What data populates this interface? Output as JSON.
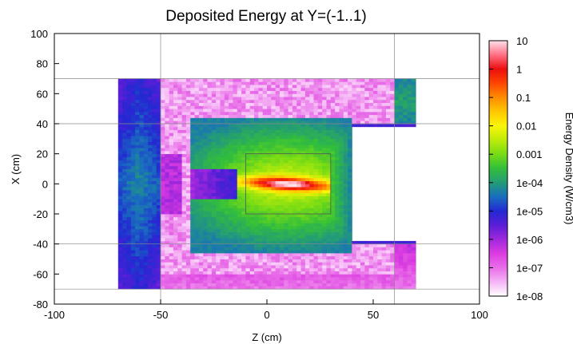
{
  "chart_data": {
    "type": "heatmap",
    "title": "Deposited Energy at Y=(-1..1)",
    "xlabel": "Z (cm)",
    "ylabel": "X (cm)",
    "xlim": [
      -100,
      100
    ],
    "ylim": [
      -80,
      100
    ],
    "x_ticks": [
      "-100",
      "-50",
      "0",
      "50",
      "100"
    ],
    "y_ticks": [
      "-80",
      "-60",
      "-40",
      "-20",
      "0",
      "20",
      "40",
      "60",
      "80",
      "100"
    ],
    "colorbar": {
      "label": "Energy Density (W/cm3)",
      "scale": "log",
      "range": [
        1e-08,
        10
      ],
      "ticks": [
        "10",
        "1",
        "0.1",
        "0.01",
        "0.001",
        "1e-04",
        "1e-05",
        "1e-06",
        "1e-07",
        "1e-08"
      ]
    },
    "regions": [
      {
        "name": "outer-shell",
        "z": [
          -70,
          70
        ],
        "x": [
          -70,
          70
        ],
        "log_density": -5.0
      },
      {
        "name": "pink-shield",
        "z": [
          -50,
          60
        ],
        "x": [
          -60,
          70
        ],
        "log_density": -7.3
      },
      {
        "name": "inner-body",
        "z": [
          -35,
          40
        ],
        "x": [
          -45,
          44
        ],
        "log_density": -3.2
      },
      {
        "name": "channel-notch",
        "z": [
          -35,
          -14
        ],
        "x": [
          -10,
          10
        ],
        "log_density": -6.0
      },
      {
        "name": "right-opening",
        "z": [
          40,
          70
        ],
        "x": [
          -38,
          38
        ],
        "log_density": null
      },
      {
        "name": "opening-edge-top",
        "z": [
          40,
          70
        ],
        "x": [
          38,
          40
        ],
        "log_density": -5.3
      },
      {
        "name": "opening-edge-bottom",
        "z": [
          40,
          70
        ],
        "x": [
          -40,
          -38
        ],
        "log_density": -5.3
      },
      {
        "name": "hot-core",
        "z": [
          -10,
          30
        ],
        "x": [
          -8,
          8
        ],
        "log_density": 0.5
      }
    ],
    "reference_lines": {
      "x_values": [
        70,
        40,
        -40,
        -70
      ],
      "z_values": [
        -50,
        60
      ],
      "inner_box": {
        "z": [
          -10,
          30
        ],
        "x": [
          -20,
          20
        ]
      }
    },
    "grid": false
  }
}
